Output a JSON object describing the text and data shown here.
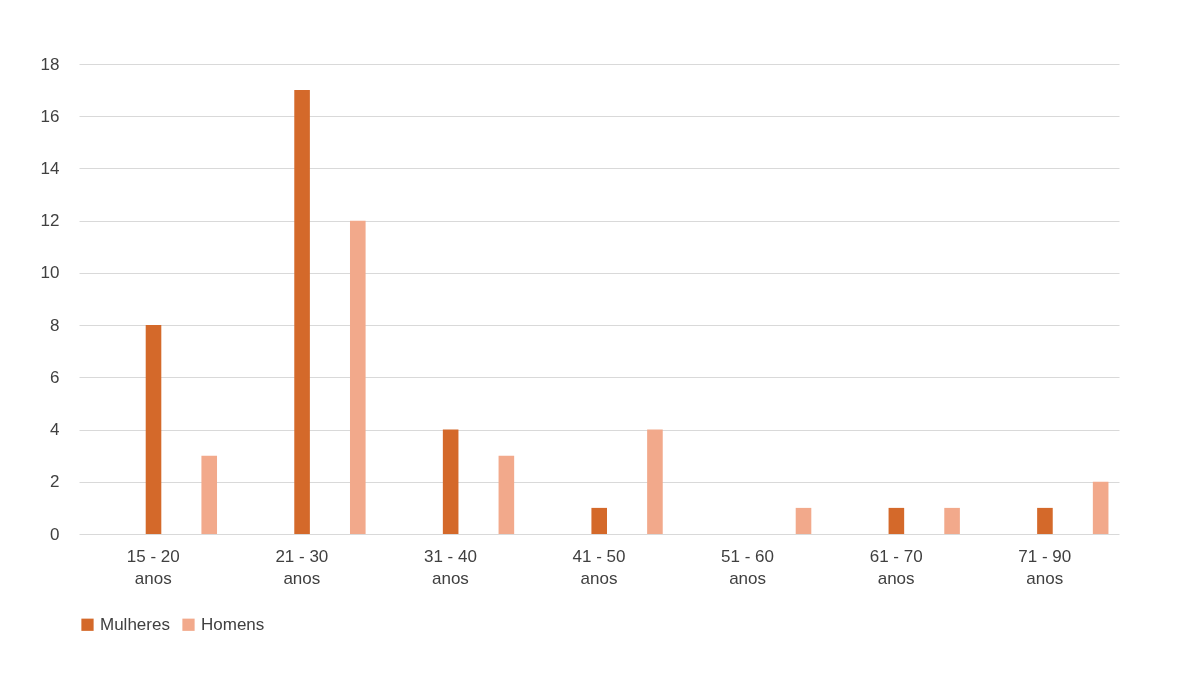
{
  "chart_data": {
    "type": "bar",
    "categories": [
      "15 - 20 anos",
      "21 - 30 anos",
      "31 - 40 anos",
      "41 - 50 anos",
      "51 - 60 anos",
      "61 - 70 anos",
      "71 - 90 anos"
    ],
    "series": [
      {
        "name": "Mulheres",
        "color": "#d4692a",
        "values": [
          8,
          17,
          4,
          1,
          0,
          1,
          1
        ]
      },
      {
        "name": "Homens",
        "color": "#f2a98b",
        "values": [
          3,
          12,
          3,
          4,
          1,
          1,
          2
        ]
      }
    ],
    "ylim": [
      0,
      18
    ],
    "yticks": [
      0,
      2,
      4,
      6,
      8,
      10,
      12,
      14,
      16,
      18
    ],
    "grid": "y",
    "legend": "bottom"
  }
}
